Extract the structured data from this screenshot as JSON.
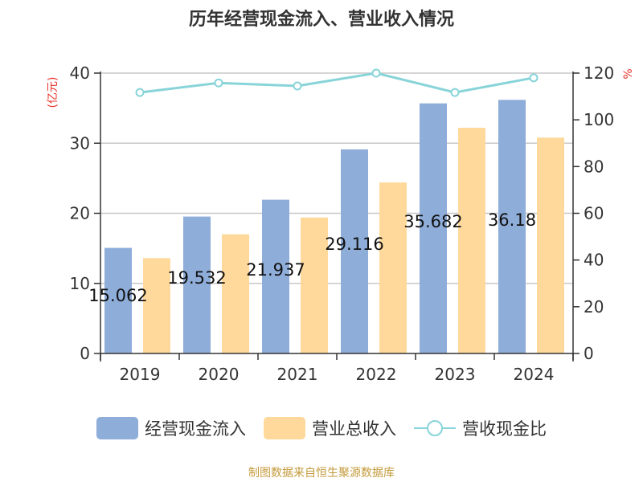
{
  "title": "历年经营现金流入、营业收入情况",
  "source": "制图数据来自恒生聚源数据库",
  "colors": {
    "cash_inflow": "#8eadd9",
    "revenue": "#fed99b",
    "ratio": "#88d4d9",
    "axis_unit": "#e8332a",
    "source": "#c49a3a",
    "grid": "#c8c8c8",
    "axis": "#333333"
  },
  "legend": [
    {
      "label": "经营现金流入",
      "type": "box",
      "color": "#8eadd9"
    },
    {
      "label": "营业总收入",
      "type": "box",
      "color": "#fed99b"
    },
    {
      "label": "营收现金比",
      "type": "line",
      "color": "#88d4d9"
    }
  ],
  "chart_data": {
    "type": "bar",
    "title": "历年经营现金流入、营业收入情况",
    "categories": [
      "2019",
      "2020",
      "2021",
      "2022",
      "2023",
      "2024"
    ],
    "series": [
      {
        "name": "经营现金流入",
        "type": "bar",
        "axis": "left",
        "values": [
          15.062,
          19.532,
          21.937,
          29.116,
          35.682,
          36.18
        ],
        "labels": [
          "15.062",
          "19.532",
          "21.937",
          "29.116",
          "35.682",
          "36.18"
        ]
      },
      {
        "name": "营业总收入",
        "type": "bar",
        "axis": "left",
        "values": [
          13.6,
          17.0,
          19.4,
          24.4,
          32.2,
          30.8
        ]
      },
      {
        "name": "营收现金比",
        "type": "line",
        "axis": "right",
        "values": [
          111.7,
          115.8,
          114.5,
          120.0,
          111.7,
          118.0
        ]
      }
    ],
    "ylabel": "(亿元)",
    "ylabel_right": "%",
    "ylim": [
      0,
      40
    ],
    "ylim_right": [
      0,
      120
    ],
    "yticks": [
      0,
      10,
      20,
      30,
      40
    ],
    "yticks_right": [
      0,
      20,
      40,
      60,
      80,
      100,
      120
    ],
    "grid": true,
    "legend_position": "bottom"
  }
}
